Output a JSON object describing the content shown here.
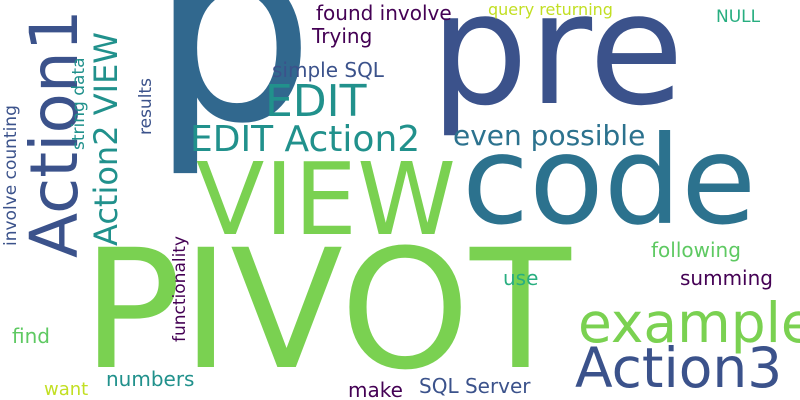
{
  "words": {
    "p": "p",
    "pre": "pre",
    "pivot": "PIVOT",
    "code": "code",
    "view": "VIEW",
    "action1": "Action1",
    "edit": "EDIT",
    "example": "example",
    "action3": "Action3",
    "edit_action2": "EDIT Action2",
    "action2_view": "Action2 VIEW",
    "even_possible": "even possible",
    "simple_sql": "simple SQL",
    "found_involve": "found involve",
    "trying": "Trying",
    "query_returning": "query returning",
    "null": "NULL",
    "string_data": "string data",
    "results": "results",
    "involve_counting": "involve counting",
    "functionality": "functionality",
    "following": "following",
    "summing": "summing",
    "use": "use",
    "find": "find",
    "numbers": "numbers",
    "make": "make",
    "sql_server": "SQL Server",
    "want": "want"
  },
  "colors": {
    "background": "#ffffff",
    "dark_purple": "#440154",
    "indigo": "#3b528b",
    "slate_blue": "#31688e",
    "teal_blue": "#2c728e",
    "teal": "#21918c",
    "green_teal": "#28ae80",
    "green": "#5ec962",
    "light_green": "#7ad151",
    "yellow": "#c2df23"
  }
}
